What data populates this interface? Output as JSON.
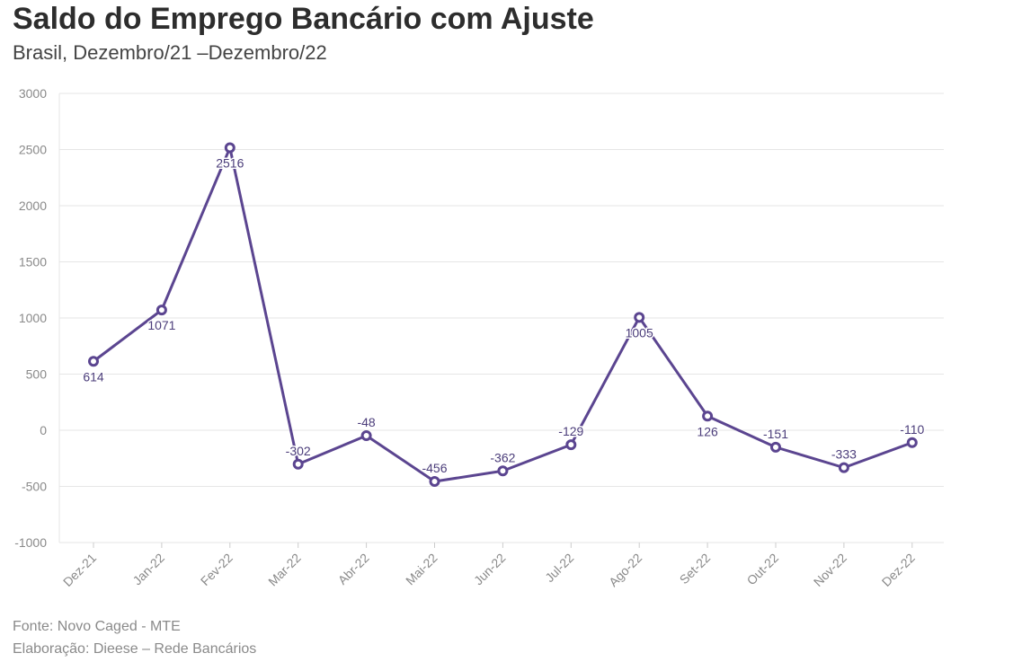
{
  "header": {
    "title": "Saldo do Emprego Bancário com Ajuste",
    "subtitle": "Brasil, Dezembro/21 –Dezembro/22"
  },
  "footer": {
    "source": "Fonte: Novo Caged - MTE",
    "credit": "Elaboração: Dieese – Rede Bancários"
  },
  "colors": {
    "line": "#5b4590",
    "grid": "#e6e6e6",
    "axis_text": "#8a8a8a",
    "label": "#4b3d7a"
  },
  "chart_data": {
    "type": "line",
    "title": "Saldo do Emprego Bancário com Ajuste",
    "subtitle": "Brasil, Dezembro/21 –Dezembro/22",
    "xlabel": "",
    "ylabel": "",
    "ylim": [
      -1000,
      3000
    ],
    "yticks": [
      -1000,
      -500,
      0,
      500,
      1000,
      1500,
      2000,
      2500,
      3000
    ],
    "grid": true,
    "legend": "none",
    "categories": [
      "Dez-21",
      "Jan-22",
      "Fev-22",
      "Mar-22",
      "Abr-22",
      "Mai-22",
      "Jun-22",
      "Jul-22",
      "Ago-22",
      "Set-22",
      "Out-22",
      "Nov-22",
      "Dez-22"
    ],
    "series": [
      {
        "values": [
          614,
          1071,
          2516,
          -302,
          -48,
          -456,
          -362,
          -129,
          1005,
          126,
          -151,
          -333,
          -110
        ],
        "label_position": [
          "below",
          "below",
          "below",
          "above",
          "above",
          "above",
          "above",
          "above",
          "below",
          "below",
          "above",
          "above",
          "above"
        ]
      }
    ]
  }
}
